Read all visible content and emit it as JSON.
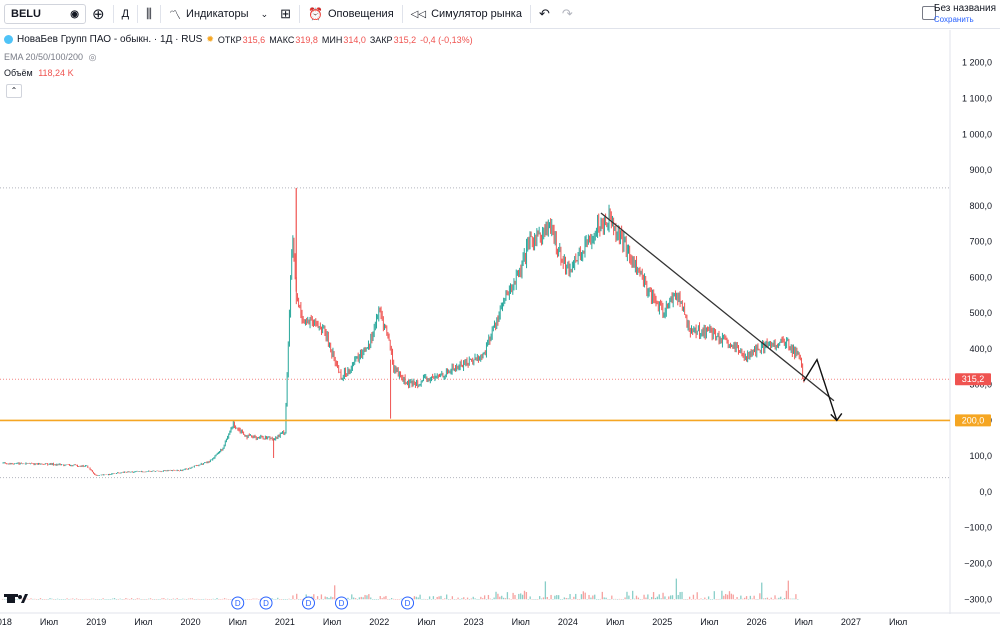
{
  "toolbar": {
    "symbol": "BELU",
    "interval": "Д",
    "indicators": "Индикаторы",
    "alerts": "Оповещения",
    "replay": "Симулятор рынка",
    "layout_name": "Без названия",
    "layout_status": "Сохранить"
  },
  "legend": {
    "title": "НоваБев Групп ПАО - обыкн. · 1Д · RUS",
    "open_label": "ОТКР",
    "open": "315,6",
    "high_label": "МАКС",
    "high": "319,8",
    "low_label": "МИН",
    "low": "314,0",
    "close_label": "ЗАКР",
    "close": "315,2",
    "change": "-0,4 (-0,13%)",
    "ema": "EMA 20/50/100/200",
    "volume_label": "Объём",
    "volume": "118,24 K",
    "currency": "RUB"
  },
  "colors": {
    "up": "#26a69a",
    "down": "#ef5350",
    "level": "#f5a623",
    "price_tag": "#ef5350"
  },
  "icons": [
    "eye-icon",
    "plus-circle-icon",
    "candles-icon",
    "indicators-icon",
    "grid-icon",
    "alarm-clock-icon",
    "rewind-icon",
    "undo-icon",
    "redo-icon",
    "dividend-icon",
    "tradingview-logo-icon"
  ],
  "chart_data": {
    "type": "line",
    "y_axis": {
      "range": [
        -330,
        1230
      ],
      "ticks": [
        "1 200,0",
        "1 100,0",
        "1 000,0",
        "900,0",
        "800,0",
        "700,0",
        "600,0",
        "500,0",
        "400,0",
        "300,0",
        "200,0",
        "100,0",
        "0,0",
        "−100,0",
        "−200,0",
        "−300,0"
      ],
      "tick_values": [
        1200,
        1100,
        1000,
        900,
        800,
        700,
        600,
        500,
        400,
        300,
        200,
        100,
        0,
        -100,
        -200,
        -300
      ]
    },
    "x_axis": {
      "labels": [
        "2018",
        "Июл",
        "2019",
        "Июл",
        "2020",
        "Июл",
        "2021",
        "Июл",
        "2022",
        "Июл",
        "2023",
        "Июл",
        "2024",
        "Июл",
        "2025",
        "Июл",
        "2026",
        "Июл",
        "2027",
        "Июл"
      ],
      "label_dates": [
        2018.0,
        2018.5,
        2019.0,
        2019.5,
        2020.0,
        2020.5,
        2021.0,
        2021.5,
        2022.0,
        2022.5,
        2023.0,
        2023.5,
        2024.0,
        2024.5,
        2025.0,
        2025.5,
        2026.0,
        2026.5,
        2027.0,
        2027.5
      ],
      "range": [
        2017.98,
        2028.05
      ]
    },
    "price": {
      "x": [
        2018.0,
        2018.5,
        2018.9,
        2019.0,
        2019.3,
        2019.6,
        2019.9,
        2020.2,
        2020.35,
        2020.45,
        2020.6,
        2020.9,
        2021.0,
        2021.08,
        2021.12,
        2021.2,
        2021.4,
        2021.6,
        2021.7,
        2021.9,
        2022.0,
        2022.1,
        2022.15,
        2022.3,
        2022.6,
        2022.9,
        2023.1,
        2023.3,
        2023.5,
        2023.6,
        2023.8,
        2024.0,
        2024.2,
        2024.3,
        2024.45,
        2024.6,
        2024.8,
        2025.0,
        2025.15,
        2025.3,
        2025.5,
        2025.7,
        2025.9,
        2026.1,
        2026.3,
        2026.45,
        2026.5
      ],
      "y": [
        80,
        78,
        72,
        45,
        55,
        58,
        60,
        85,
        125,
        190,
        155,
        150,
        170,
        720,
        540,
        480,
        460,
        320,
        350,
        420,
        505,
        430,
        350,
        300,
        320,
        360,
        380,
        520,
        620,
        700,
        740,
        620,
        690,
        740,
        770,
        690,
        590,
        500,
        560,
        450,
        450,
        410,
        380,
        410,
        420,
        380,
        310
      ]
    },
    "volume_baseline": -300,
    "volume_max": 70,
    "levels": [
      {
        "value": 200,
        "label": "200,0"
      },
      {
        "value": 315.2,
        "label": "315,2"
      }
    ],
    "dotted_levels": [
      850,
      40
    ],
    "trendline": {
      "x": [
        2024.35,
        2026.82
      ],
      "y": [
        780,
        255
      ]
    },
    "arrow": {
      "x": [
        2026.5,
        2026.64,
        2026.85
      ],
      "y": [
        310,
        370,
        200
      ]
    },
    "dividend_markers": [
      2020.5,
      2020.8,
      2021.25,
      2021.6,
      2022.3
    ]
  }
}
